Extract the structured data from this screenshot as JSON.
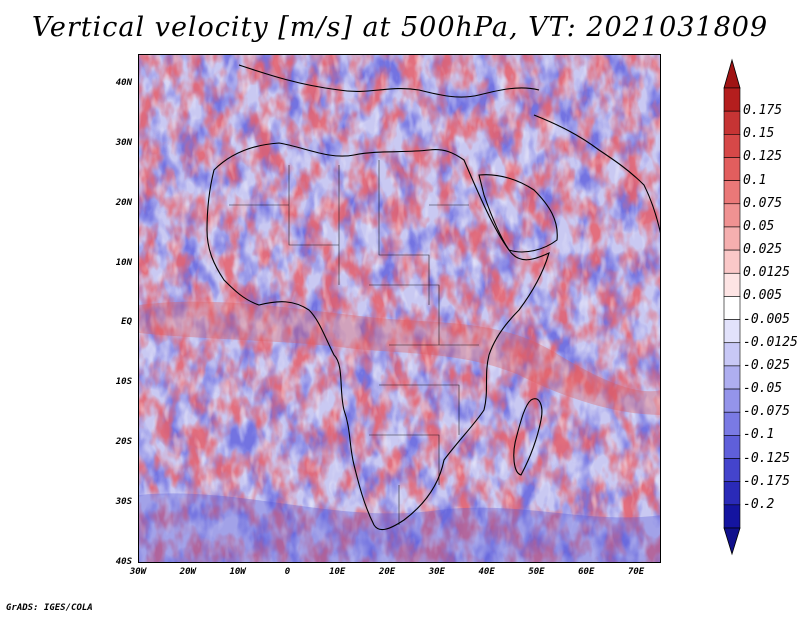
{
  "title": "Vertical velocity [m/s] at 500hPa, VT: 2021031809",
  "footer": "GrADS: IGES/COLA",
  "map": {
    "variable": "Vertical velocity",
    "units": "m/s",
    "level": "500hPa",
    "valid_time": "2021031809",
    "region": "Africa"
  },
  "axes": {
    "x_ticks": [
      "30W",
      "20W",
      "10W",
      "0",
      "10E",
      "20E",
      "30E",
      "40E",
      "50E",
      "60E",
      "70E"
    ],
    "y_ticks": [
      "40N",
      "30N",
      "20N",
      "10N",
      "EQ",
      "10S",
      "20S",
      "30S",
      "40S"
    ],
    "lon_range": [
      -30,
      75
    ],
    "lat_range": [
      -40,
      45
    ]
  },
  "colorbar": {
    "levels": [
      "0.175",
      "0.15",
      "0.125",
      "0.1",
      "0.075",
      "0.05",
      "0.025",
      "0.0125",
      "0.005",
      "-0.005",
      "-0.0125",
      "-0.025",
      "-0.05",
      "-0.075",
      "-0.1",
      "-0.125",
      "-0.175",
      "-0.2"
    ],
    "colors": [
      "#b41e1e",
      "#c63434",
      "#d64848",
      "#e25e5e",
      "#ea7878",
      "#f09292",
      "#f5afaf",
      "#fac8c8",
      "#fde4e4",
      "#ffffff",
      "#e2e2fb",
      "#c8c8f6",
      "#aeaef0",
      "#9494ea",
      "#7a7ae4",
      "#5f5fda",
      "#4444cc",
      "#2a2ab8",
      "#1414a0"
    ],
    "arrow_top_color": "#a01414",
    "arrow_bottom_color": "#10108c"
  }
}
